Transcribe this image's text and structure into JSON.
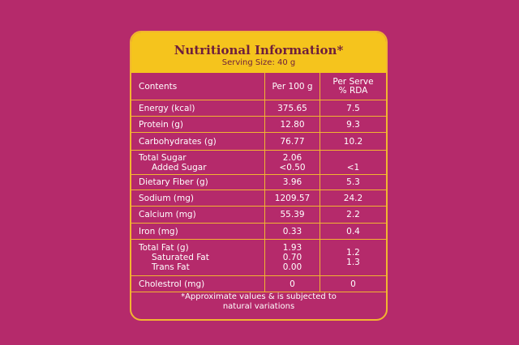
{
  "header": {
    "title": "Nutritional Information*",
    "subtitle": "Serving Size: 40 g"
  },
  "table": {
    "columns": [
      "Contents",
      "Per 100 g",
      "Per Serve % RDA"
    ],
    "rows": [
      {
        "cells": [
          "Energy (kcal)",
          "375.65",
          "7.5"
        ]
      },
      {
        "cells": [
          "Protein (g)",
          "12.80",
          "9.3"
        ]
      },
      {
        "cells": [
          "Carbohydrates (g)",
          "76.77",
          "10.2"
        ]
      },
      {
        "cells": [
          "Total Sugar",
          "2.06"
        ],
        "sub": [
          [
            "Added Sugar",
            "<0.50",
            "<1"
          ]
        ]
      },
      {
        "cells": [
          "Dietary Fiber (g)",
          "3.96",
          "5.3"
        ]
      },
      {
        "cells": [
          "Sodium (mg)",
          "1209.57",
          "24.2"
        ]
      },
      {
        "cells": [
          "Calcium (mg)",
          "55.39",
          "2.2"
        ]
      },
      {
        "cells": [
          "Iron (mg)",
          "0.33",
          "0.4"
        ]
      },
      {
        "cells": [
          "Total Fat (g)",
          "1.93",
          "1.2"
        ],
        "sub": [
          [
            "Saturated Fat",
            "0.70",
            "1.3"
          ],
          [
            "Trans Fat",
            "0.00"
          ]
        ]
      },
      {
        "cells": [
          "Cholestrol (mg)",
          "0",
          "0"
        ]
      }
    ]
  },
  "footnote": "*Approximate values & is subjected to natural variations"
}
